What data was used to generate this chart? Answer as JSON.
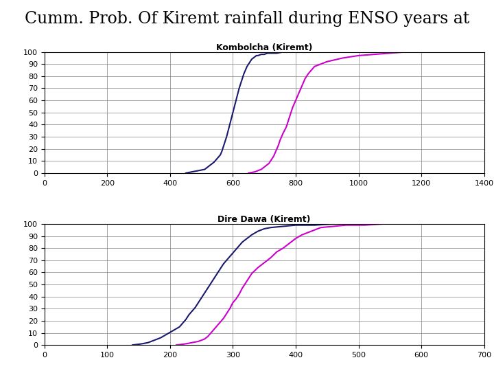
{
  "title": "Cumm. Prob. Of Kiremt rainfall during ENSO years at",
  "title_fontsize": 17,
  "title_font": "serif",
  "background_color": "#ffffff",
  "plot1": {
    "subtitle": "Kombolcha (Kiremt)",
    "xlim": [
      0,
      1400
    ],
    "ylim": [
      0,
      100
    ],
    "xticks": [
      0,
      200,
      400,
      600,
      800,
      1000,
      1200,
      1400
    ],
    "yticks": [
      0,
      10,
      20,
      30,
      40,
      50,
      60,
      70,
      80,
      90,
      100
    ],
    "curve1_color": "#1a1a6e",
    "curve2_color": "#cc00cc",
    "curve1_x": [
      450,
      470,
      490,
      510,
      520,
      530,
      540,
      550,
      560,
      565,
      570,
      575,
      580,
      585,
      590,
      595,
      600,
      605,
      610,
      615,
      620,
      625,
      630,
      635,
      640,
      645,
      650,
      655,
      660,
      665,
      670,
      675,
      680,
      690,
      700,
      710,
      720,
      740,
      760,
      790,
      820
    ],
    "curve1_y": [
      0,
      1,
      2,
      3,
      5,
      7,
      9,
      12,
      15,
      18,
      22,
      26,
      30,
      35,
      40,
      45,
      50,
      55,
      60,
      65,
      70,
      74,
      78,
      82,
      85,
      88,
      90,
      92,
      94,
      95,
      96,
      97,
      97,
      98,
      98,
      99,
      99,
      99,
      100,
      100,
      100
    ],
    "curve2_x": [
      650,
      670,
      680,
      690,
      700,
      710,
      715,
      720,
      725,
      730,
      735,
      740,
      745,
      750,
      755,
      760,
      770,
      775,
      780,
      785,
      790,
      795,
      800,
      805,
      810,
      815,
      820,
      825,
      830,
      840,
      850,
      860,
      880,
      900,
      950,
      1000,
      1050,
      1100,
      1150
    ],
    "curve2_y": [
      0,
      1,
      2,
      3,
      5,
      7,
      8,
      10,
      12,
      14,
      17,
      20,
      23,
      27,
      30,
      33,
      38,
      42,
      46,
      50,
      54,
      57,
      60,
      63,
      66,
      69,
      72,
      75,
      78,
      82,
      85,
      88,
      90,
      92,
      95,
      97,
      98,
      99,
      100
    ]
  },
  "plot2": {
    "subtitle": "Dire Dawa (Kiremt)",
    "xlim": [
      0,
      700
    ],
    "ylim": [
      0,
      100
    ],
    "xticks": [
      0,
      100,
      200,
      300,
      400,
      500,
      600,
      700
    ],
    "yticks": [
      0,
      10,
      20,
      30,
      40,
      50,
      60,
      70,
      80,
      90,
      100
    ],
    "curve1_color": "#1a1a6e",
    "curve2_color": "#cc00cc",
    "curve1_x": [
      140,
      155,
      165,
      175,
      185,
      195,
      205,
      215,
      220,
      225,
      230,
      235,
      240,
      245,
      250,
      255,
      260,
      265,
      270,
      275,
      280,
      285,
      290,
      295,
      300,
      305,
      310,
      315,
      320,
      325,
      330,
      340,
      350,
      360,
      380,
      400,
      430,
      460
    ],
    "curve1_y": [
      0,
      1,
      2,
      4,
      6,
      9,
      12,
      15,
      18,
      21,
      25,
      28,
      31,
      35,
      39,
      43,
      47,
      51,
      55,
      59,
      63,
      67,
      70,
      73,
      76,
      79,
      82,
      85,
      87,
      89,
      91,
      94,
      96,
      97,
      98,
      99,
      99,
      100
    ],
    "curve2_x": [
      210,
      225,
      235,
      245,
      255,
      260,
      265,
      270,
      275,
      280,
      285,
      290,
      295,
      300,
      305,
      310,
      315,
      320,
      325,
      330,
      340,
      350,
      360,
      370,
      380,
      390,
      400,
      410,
      420,
      430,
      440,
      460,
      480,
      510,
      540
    ],
    "curve2_y": [
      0,
      1,
      2,
      3,
      5,
      7,
      10,
      13,
      16,
      19,
      22,
      26,
      30,
      35,
      38,
      42,
      47,
      51,
      55,
      59,
      64,
      68,
      72,
      77,
      80,
      84,
      88,
      91,
      93,
      95,
      97,
      98,
      99,
      99,
      100
    ]
  }
}
